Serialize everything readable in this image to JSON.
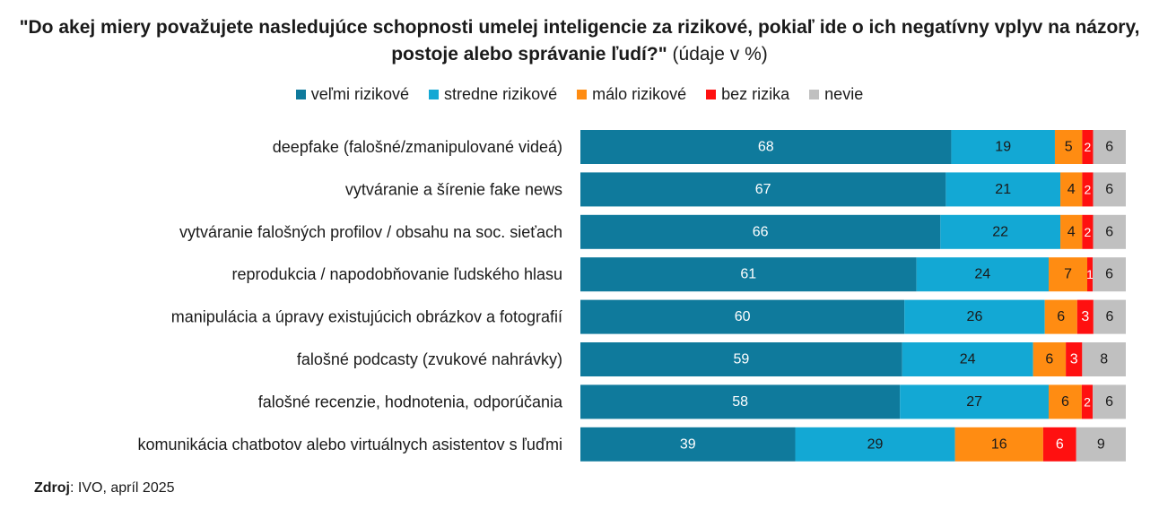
{
  "title": {
    "question": "\"Do akej miery považujete nasledujúce schopnosti umelej inteligencie za rizikové, pokiaľ ide o ich negatívny vplyv na názory, postoje alebo správanie ľudí?\"",
    "unit": "(údaje v %)"
  },
  "source": {
    "label": "Zdroj",
    "text": ": IVO, apríl 2025"
  },
  "chart_data": {
    "type": "bar",
    "orientation": "horizontal",
    "stacked": true,
    "title": "\"Do akej miery považujete nasledujúce schopnosti umelej inteligencie za rizikové, pokiaľ ide o ich negatívny vplyv na názory, postoje alebo správanie ľudí?\" (údaje v %)",
    "legend_position": "top",
    "grid": false,
    "xlim": [
      0,
      100
    ],
    "categories": [
      "deepfake (falošné/zmanipulované videá)",
      "vytváranie a šírenie fake news",
      "vytváranie falošných profilov / obsahu na soc. sieťach",
      "reprodukcia / napodobňovanie ľudského hlasu",
      "manipulácia a úpravy existujúcich obrázkov a fotografií",
      "falošné podcasty (zvukové nahrávky)",
      "falošné recenzie, hodnotenia, odporúčania",
      "komunikácia chatbotov alebo virtuálnych asistentov s ľuďmi"
    ],
    "series": [
      {
        "name": "veľmi rizikové",
        "color": "#0F7A9C",
        "label_color": "#ffffff",
        "values": [
          68,
          67,
          66,
          61,
          60,
          59,
          58,
          39
        ]
      },
      {
        "name": "stredne rizikové",
        "color": "#13A8D4",
        "label_color": "#1a1a1a",
        "values": [
          19,
          21,
          22,
          24,
          26,
          24,
          27,
          29
        ]
      },
      {
        "name": "málo rizikové",
        "color": "#FF8C12",
        "label_color": "#1a1a1a",
        "values": [
          5,
          4,
          4,
          7,
          6,
          6,
          6,
          16
        ]
      },
      {
        "name": "bez rizika",
        "color": "#FF1010",
        "label_color": "#ffffff",
        "values": [
          2,
          2,
          2,
          1,
          3,
          3,
          2,
          6
        ]
      },
      {
        "name": "nevie",
        "color": "#C0C0C0",
        "label_color": "#1a1a1a",
        "values": [
          6,
          6,
          6,
          6,
          6,
          8,
          6,
          9
        ]
      }
    ]
  }
}
